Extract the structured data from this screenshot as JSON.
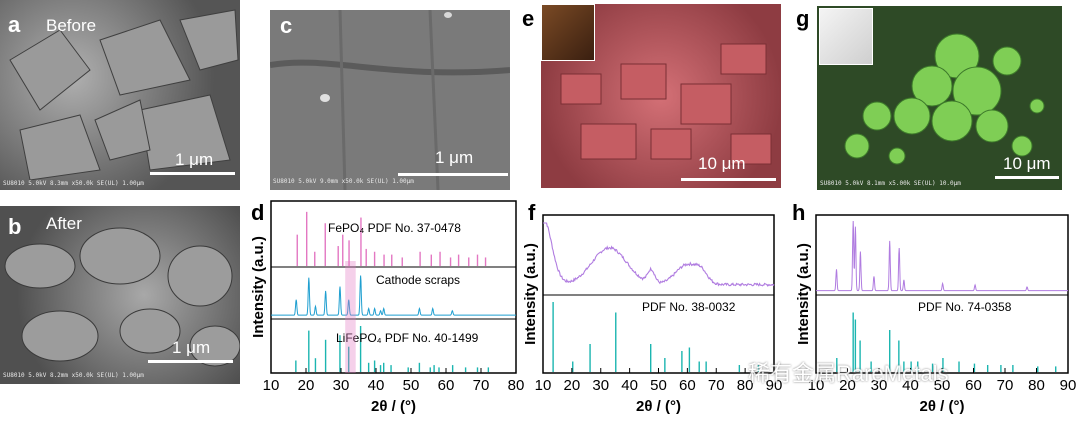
{
  "panels": {
    "a": {
      "label": "a",
      "note": "Before",
      "scale": "1 μm",
      "footer": "SU8010 5.0kV 8.3mm x50.0k SE(UL)      1.00μm"
    },
    "b": {
      "label": "b",
      "note": "After",
      "scale": "1 μm",
      "footer": "SU8010 5.0kV 8.2mm x50.0k SE(UL)      1.00μm"
    },
    "c": {
      "label": "c",
      "scale": "1 μm",
      "footer": "SU8010 5.0kV 9.0mm x50.0k SE(UL)      1.00μm"
    },
    "e": {
      "label": "e",
      "scale": "10 μm"
    },
    "g": {
      "label": "g",
      "scale": "10 μm",
      "footer": "SU8010 5.0kV 8.1mm x5.00k SE(UL)      10.0μm"
    },
    "d": {
      "label": "d"
    },
    "f": {
      "label": "f"
    },
    "h": {
      "label": "h"
    }
  },
  "colors": {
    "pink": "#e377c2",
    "blue": "#1f9fd0",
    "teal": "#1bb5b0",
    "purple": "#b07ce0",
    "red_sem": "#c45a5e",
    "green_sem": "#5fae3e"
  },
  "chart_data": [
    {
      "type": "line",
      "panel": "d",
      "ylabel": "Intensity (a.u.)",
      "xlabel": "2θ / (°)",
      "xlim": [
        10,
        80
      ],
      "xticks": [
        10,
        20,
        30,
        40,
        50,
        60,
        70,
        80
      ],
      "series": [
        {
          "name": "FePO4 PDF No. 37-0478",
          "kind": "sticks",
          "peaks": [
            [
              17.5,
              0.55
            ],
            [
              20.2,
              0.95
            ],
            [
              22.5,
              0.25
            ],
            [
              25.5,
              0.75
            ],
            [
              29.2,
              0.35
            ],
            [
              30.5,
              0.55
            ],
            [
              32.3,
              0.45
            ],
            [
              35.7,
              0.85
            ],
            [
              37.2,
              0.3
            ],
            [
              39.6,
              0.25
            ],
            [
              42.3,
              0.2
            ],
            [
              44.5,
              0.2
            ],
            [
              47.5,
              0.15
            ],
            [
              52.6,
              0.25
            ],
            [
              55.8,
              0.2
            ],
            [
              58.3,
              0.25
            ],
            [
              61.3,
              0.15
            ],
            [
              63.6,
              0.2
            ],
            [
              66.5,
              0.15
            ],
            [
              69.0,
              0.2
            ],
            [
              71.3,
              0.15
            ]
          ]
        },
        {
          "name": "Cathode scraps",
          "kind": "pattern",
          "peaks": [
            [
              17.2,
              0.35
            ],
            [
              20.8,
              0.85
            ],
            [
              22.7,
              0.2
            ],
            [
              25.6,
              0.55
            ],
            [
              29.7,
              0.65
            ],
            [
              32.2,
              0.35
            ],
            [
              35.6,
              0.9
            ],
            [
              37.9,
              0.15
            ],
            [
              39.6,
              0.15
            ],
            [
              41.3,
              0.1
            ],
            [
              42.2,
              0.15
            ],
            [
              52.4,
              0.15
            ],
            [
              56.2,
              0.15
            ],
            [
              61.8,
              0.1
            ]
          ]
        },
        {
          "name": "LiFePO4 PDF No. 40-1499",
          "kind": "sticks",
          "peaks": [
            [
              17.1,
              0.25
            ],
            [
              20.8,
              0.9
            ],
            [
              22.7,
              0.3
            ],
            [
              25.6,
              0.7
            ],
            [
              29.7,
              0.8
            ],
            [
              32.2,
              0.55
            ],
            [
              35.6,
              1.0
            ],
            [
              37.9,
              0.2
            ],
            [
              39.6,
              0.25
            ],
            [
              41.3,
              0.15
            ],
            [
              42.2,
              0.2
            ],
            [
              44.3,
              0.15
            ],
            [
              49.2,
              0.1
            ],
            [
              52.4,
              0.2
            ],
            [
              55.5,
              0.1
            ],
            [
              56.6,
              0.15
            ],
            [
              58.0,
              0.1
            ],
            [
              61.9,
              0.15
            ],
            [
              65.6,
              0.1
            ],
            [
              69.0,
              0.1
            ],
            [
              72.1,
              0.1
            ]
          ]
        }
      ]
    },
    {
      "type": "line",
      "panel": "f",
      "ylabel": "Intensity (a.u.)",
      "xlabel": "2θ / (°)",
      "xlim": [
        10,
        90
      ],
      "xticks": [
        10,
        20,
        30,
        40,
        50,
        60,
        70,
        80,
        90
      ],
      "series": [
        {
          "name": "",
          "kind": "broad",
          "bumps": [
            [
              10,
              1.0,
              3
            ],
            [
              33,
              0.55,
              6
            ],
            [
              47.5,
              0.2,
              1.2
            ],
            [
              60,
              0.3,
              4
            ],
            [
              65,
              0.12,
              2
            ]
          ]
        },
        {
          "name": "PDF No. 38-0032",
          "kind": "sticks",
          "peaks": [
            [
              13.5,
              1.0
            ],
            [
              20.3,
              0.15
            ],
            [
              26.3,
              0.4
            ],
            [
              35.2,
              0.85
            ],
            [
              47.3,
              0.4
            ],
            [
              52.2,
              0.2
            ],
            [
              58.1,
              0.3
            ],
            [
              60.7,
              0.35
            ],
            [
              64.1,
              0.15
            ],
            [
              66.5,
              0.15
            ],
            [
              78.0,
              0.1
            ],
            [
              84.6,
              0.1
            ]
          ]
        }
      ]
    },
    {
      "type": "line",
      "panel": "h",
      "ylabel": "Intensity (a.u.)",
      "xlabel": "2θ / (°)",
      "xlim": [
        10,
        90
      ],
      "xticks": [
        10,
        20,
        30,
        40,
        50,
        60,
        70,
        80,
        90
      ],
      "series": [
        {
          "name": "",
          "kind": "pattern",
          "peaks": [
            [
              16.5,
              0.3
            ],
            [
              21.8,
              1.0
            ],
            [
              22.5,
              0.9
            ],
            [
              24.1,
              0.55
            ],
            [
              28.4,
              0.2
            ],
            [
              33.4,
              0.7
            ],
            [
              36.4,
              0.6
            ],
            [
              37.9,
              0.15
            ],
            [
              50.2,
              0.1
            ],
            [
              60.5,
              0.08
            ],
            [
              77.0,
              0.05
            ]
          ]
        },
        {
          "name": "PDF No. 74-0358",
          "kind": "sticks",
          "peaks": [
            [
              16.6,
              0.2
            ],
            [
              21.8,
              0.85
            ],
            [
              22.5,
              0.75
            ],
            [
              24.0,
              0.45
            ],
            [
              27.5,
              0.15
            ],
            [
              33.4,
              0.6
            ],
            [
              36.3,
              0.45
            ],
            [
              37.9,
              0.15
            ],
            [
              40.2,
              0.15
            ],
            [
              42.3,
              0.15
            ],
            [
              47.0,
              0.12
            ],
            [
              50.3,
              0.2
            ],
            [
              55.4,
              0.15
            ],
            [
              60.3,
              0.12
            ],
            [
              64.5,
              0.1
            ],
            [
              68.7,
              0.1
            ],
            [
              72.5,
              0.1
            ],
            [
              80.4,
              0.08
            ],
            [
              86.1,
              0.08
            ]
          ]
        }
      ]
    }
  ],
  "watermark": "稀有金属RareMetals"
}
